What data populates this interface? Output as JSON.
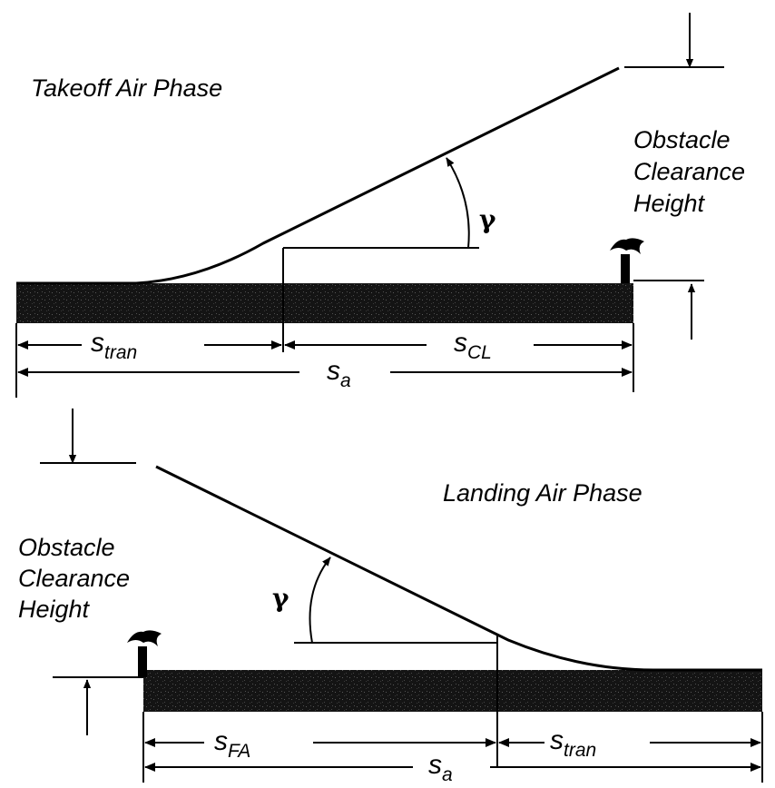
{
  "takeoff": {
    "title": "Takeoff Air Phase",
    "obstacle_label": [
      "Obstacle",
      "Clearance",
      "Height"
    ],
    "angle_symbol": "γ",
    "dims": {
      "s_tran": {
        "main": "s",
        "sub": "tran"
      },
      "s_cl": {
        "main": "s",
        "sub": "CL"
      },
      "s_a": {
        "main": "s",
        "sub": "a"
      }
    }
  },
  "landing": {
    "title": "Landing Air Phase",
    "obstacle_label": [
      "Obstacle",
      "Clearance",
      "Height"
    ],
    "angle_symbol": "γ",
    "dims": {
      "s_fa": {
        "main": "s",
        "sub": "FA"
      },
      "s_tran": {
        "main": "s",
        "sub": "tran"
      },
      "s_a": {
        "main": "s",
        "sub": "a"
      }
    }
  }
}
